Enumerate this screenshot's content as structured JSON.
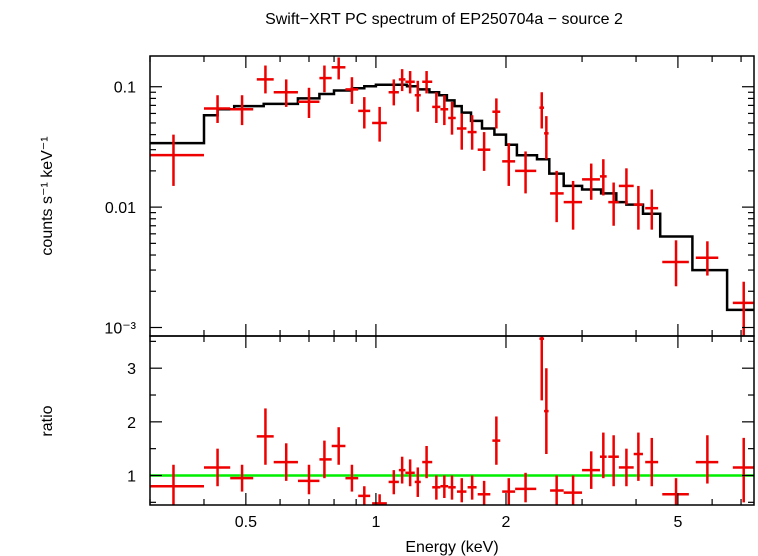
{
  "chart_data": [
    {
      "type": "scatter",
      "title": "Swift−XRT PC spectrum of EP250704a − source 2",
      "ylabel": "counts s⁻¹ keV⁻¹",
      "xlabel": "",
      "xscale": "log",
      "yscale": "log",
      "xlim": [
        0.3,
        7.5
      ],
      "ylim": [
        0.00085,
        0.18
      ],
      "ytick_labels": [
        {
          "value": 0.1,
          "label": "0.1"
        },
        {
          "value": 0.01,
          "label": "0.01"
        },
        {
          "value": 0.001,
          "label": "10⁻³"
        }
      ],
      "data_color": "#ee0000",
      "model_color": "#000000",
      "points": [
        {
          "x": 0.34,
          "xlo": 0.3,
          "xhi": 0.4,
          "y": 0.027,
          "ylo": 0.015,
          "yhi": 0.04
        },
        {
          "x": 0.43,
          "xlo": 0.4,
          "xhi": 0.46,
          "y": 0.066,
          "ylo": 0.05,
          "yhi": 0.085
        },
        {
          "x": 0.49,
          "xlo": 0.46,
          "xhi": 0.52,
          "y": 0.065,
          "ylo": 0.048,
          "yhi": 0.085
        },
        {
          "x": 0.555,
          "xlo": 0.53,
          "xhi": 0.58,
          "y": 0.115,
          "ylo": 0.088,
          "yhi": 0.15
        },
        {
          "x": 0.62,
          "xlo": 0.58,
          "xhi": 0.66,
          "y": 0.09,
          "ylo": 0.068,
          "yhi": 0.115
        },
        {
          "x": 0.7,
          "xlo": 0.66,
          "xhi": 0.74,
          "y": 0.075,
          "ylo": 0.055,
          "yhi": 0.098
        },
        {
          "x": 0.76,
          "xlo": 0.74,
          "xhi": 0.79,
          "y": 0.118,
          "ylo": 0.09,
          "yhi": 0.15
        },
        {
          "x": 0.82,
          "xlo": 0.79,
          "xhi": 0.85,
          "y": 0.145,
          "ylo": 0.115,
          "yhi": 0.175
        },
        {
          "x": 0.88,
          "xlo": 0.85,
          "xhi": 0.91,
          "y": 0.095,
          "ylo": 0.072,
          "yhi": 0.12
        },
        {
          "x": 0.94,
          "xlo": 0.91,
          "xhi": 0.97,
          "y": 0.063,
          "ylo": 0.045,
          "yhi": 0.082
        },
        {
          "x": 1.02,
          "xlo": 0.98,
          "xhi": 1.06,
          "y": 0.05,
          "ylo": 0.035,
          "yhi": 0.068
        },
        {
          "x": 1.1,
          "xlo": 1.07,
          "xhi": 1.13,
          "y": 0.09,
          "ylo": 0.07,
          "yhi": 0.115
        },
        {
          "x": 1.15,
          "xlo": 1.13,
          "xhi": 1.17,
          "y": 0.115,
          "ylo": 0.092,
          "yhi": 0.14
        },
        {
          "x": 1.2,
          "xlo": 1.17,
          "xhi": 1.23,
          "y": 0.11,
          "ylo": 0.088,
          "yhi": 0.135
        },
        {
          "x": 1.25,
          "xlo": 1.23,
          "xhi": 1.27,
          "y": 0.085,
          "ylo": 0.062,
          "yhi": 0.112
        },
        {
          "x": 1.31,
          "xlo": 1.28,
          "xhi": 1.35,
          "y": 0.11,
          "ylo": 0.088,
          "yhi": 0.135
        },
        {
          "x": 1.38,
          "xlo": 1.35,
          "xhi": 1.41,
          "y": 0.068,
          "ylo": 0.05,
          "yhi": 0.09
        },
        {
          "x": 1.44,
          "xlo": 1.41,
          "xhi": 1.47,
          "y": 0.065,
          "ylo": 0.048,
          "yhi": 0.085
        },
        {
          "x": 1.5,
          "xlo": 1.47,
          "xhi": 1.53,
          "y": 0.055,
          "ylo": 0.04,
          "yhi": 0.075
        },
        {
          "x": 1.58,
          "xlo": 1.54,
          "xhi": 1.62,
          "y": 0.045,
          "ylo": 0.03,
          "yhi": 0.06
        },
        {
          "x": 1.67,
          "xlo": 1.63,
          "xhi": 1.71,
          "y": 0.042,
          "ylo": 0.03,
          "yhi": 0.058
        },
        {
          "x": 1.78,
          "xlo": 1.72,
          "xhi": 1.84,
          "y": 0.03,
          "ylo": 0.02,
          "yhi": 0.042
        },
        {
          "x": 1.9,
          "xlo": 1.86,
          "xhi": 1.94,
          "y": 0.062,
          "ylo": 0.045,
          "yhi": 0.08
        },
        {
          "x": 2.03,
          "xlo": 1.96,
          "xhi": 2.1,
          "y": 0.024,
          "ylo": 0.015,
          "yhi": 0.034
        },
        {
          "x": 2.22,
          "xlo": 2.1,
          "xhi": 2.35,
          "y": 0.02,
          "ylo": 0.013,
          "yhi": 0.029
        },
        {
          "x": 2.42,
          "xlo": 2.39,
          "xhi": 2.45,
          "y": 0.067,
          "ylo": 0.045,
          "yhi": 0.09
        },
        {
          "x": 2.48,
          "xlo": 2.45,
          "xhi": 2.51,
          "y": 0.041,
          "ylo": 0.025,
          "yhi": 0.057
        },
        {
          "x": 2.62,
          "xlo": 2.53,
          "xhi": 2.72,
          "y": 0.013,
          "ylo": 0.0075,
          "yhi": 0.02
        },
        {
          "x": 2.86,
          "xlo": 2.72,
          "xhi": 3.0,
          "y": 0.011,
          "ylo": 0.0065,
          "yhi": 0.0165
        },
        {
          "x": 3.15,
          "xlo": 3.0,
          "xhi": 3.3,
          "y": 0.017,
          "ylo": 0.0115,
          "yhi": 0.023
        },
        {
          "x": 3.36,
          "xlo": 3.3,
          "xhi": 3.42,
          "y": 0.018,
          "ylo": 0.0125,
          "yhi": 0.025
        },
        {
          "x": 3.55,
          "xlo": 3.45,
          "xhi": 3.65,
          "y": 0.011,
          "ylo": 0.007,
          "yhi": 0.016
        },
        {
          "x": 3.8,
          "xlo": 3.65,
          "xhi": 3.95,
          "y": 0.015,
          "ylo": 0.0105,
          "yhi": 0.021
        },
        {
          "x": 4.05,
          "xlo": 3.95,
          "xhi": 4.15,
          "y": 0.0105,
          "ylo": 0.0065,
          "yhi": 0.015
        },
        {
          "x": 4.35,
          "xlo": 4.2,
          "xhi": 4.5,
          "y": 0.0098,
          "ylo": 0.0065,
          "yhi": 0.014
        },
        {
          "x": 4.95,
          "xlo": 4.6,
          "xhi": 5.3,
          "y": 0.0035,
          "ylo": 0.0022,
          "yhi": 0.0053
        },
        {
          "x": 5.85,
          "xlo": 5.5,
          "xhi": 6.2,
          "y": 0.0038,
          "ylo": 0.0027,
          "yhi": 0.0052
        },
        {
          "x": 7.1,
          "xlo": 6.7,
          "xhi": 7.5,
          "y": 0.0016,
          "ylo": 0.00085,
          "yhi": 0.0024
        }
      ],
      "model": [
        {
          "x0": 0.3,
          "x1": 0.4,
          "y": 0.034
        },
        {
          "x0": 0.4,
          "x1": 0.43,
          "y": 0.058
        },
        {
          "x0": 0.43,
          "x1": 0.47,
          "y": 0.065
        },
        {
          "x0": 0.47,
          "x1": 0.55,
          "y": 0.069
        },
        {
          "x0": 0.55,
          "x1": 0.66,
          "y": 0.072
        },
        {
          "x0": 0.66,
          "x1": 0.74,
          "y": 0.08
        },
        {
          "x0": 0.74,
          "x1": 0.8,
          "y": 0.087
        },
        {
          "x0": 0.8,
          "x1": 0.88,
          "y": 0.093
        },
        {
          "x0": 0.88,
          "x1": 0.94,
          "y": 0.097
        },
        {
          "x0": 0.94,
          "x1": 1.0,
          "y": 0.101
        },
        {
          "x0": 1.0,
          "x1": 1.18,
          "y": 0.104
        },
        {
          "x0": 1.18,
          "x1": 1.25,
          "y": 0.101
        },
        {
          "x0": 1.25,
          "x1": 1.33,
          "y": 0.095
        },
        {
          "x0": 1.33,
          "x1": 1.4,
          "y": 0.09
        },
        {
          "x0": 1.4,
          "x1": 1.46,
          "y": 0.085
        },
        {
          "x0": 1.46,
          "x1": 1.52,
          "y": 0.077
        },
        {
          "x0": 1.52,
          "x1": 1.58,
          "y": 0.069
        },
        {
          "x0": 1.58,
          "x1": 1.66,
          "y": 0.061
        },
        {
          "x0": 1.66,
          "x1": 1.76,
          "y": 0.052
        },
        {
          "x0": 1.76,
          "x1": 1.88,
          "y": 0.045
        },
        {
          "x0": 1.88,
          "x1": 2.0,
          "y": 0.04
        },
        {
          "x0": 2.0,
          "x1": 2.12,
          "y": 0.033
        },
        {
          "x0": 2.12,
          "x1": 2.36,
          "y": 0.027
        },
        {
          "x0": 2.36,
          "x1": 2.52,
          "y": 0.025
        },
        {
          "x0": 2.52,
          "x1": 2.72,
          "y": 0.019
        },
        {
          "x0": 2.72,
          "x1": 3.0,
          "y": 0.015
        },
        {
          "x0": 3.0,
          "x1": 3.32,
          "y": 0.014
        },
        {
          "x0": 3.32,
          "x1": 3.6,
          "y": 0.013
        },
        {
          "x0": 3.6,
          "x1": 3.8,
          "y": 0.011
        },
        {
          "x0": 3.8,
          "x1": 4.15,
          "y": 0.0105
        },
        {
          "x0": 4.15,
          "x1": 4.55,
          "y": 0.0088
        },
        {
          "x0": 4.55,
          "x1": 5.4,
          "y": 0.0057
        },
        {
          "x0": 5.4,
          "x1": 6.5,
          "y": 0.003
        },
        {
          "x0": 6.5,
          "x1": 7.5,
          "y": 0.0014
        }
      ]
    },
    {
      "type": "scatter",
      "title": "",
      "xlabel": "Energy (keV)",
      "ylabel": "ratio",
      "xscale": "log",
      "yscale": "linear",
      "xlim": [
        0.3,
        7.5
      ],
      "ylim": [
        0.45,
        3.6
      ],
      "xtick_labels": [
        {
          "value": 0.5,
          "label": "0.5"
        },
        {
          "value": 1,
          "label": "1"
        },
        {
          "value": 2,
          "label": "2"
        },
        {
          "value": 5,
          "label": "5"
        }
      ],
      "ytick_labels": [
        {
          "value": 1,
          "label": "1"
        },
        {
          "value": 2,
          "label": "2"
        },
        {
          "value": 3,
          "label": "3"
        }
      ],
      "reference_line": 1,
      "reference_color": "#00ee00",
      "data_color": "#ee0000",
      "points": [
        {
          "x": 0.34,
          "xlo": 0.3,
          "xhi": 0.4,
          "y": 0.8,
          "ylo": 0.45,
          "yhi": 1.2
        },
        {
          "x": 0.43,
          "xlo": 0.4,
          "xhi": 0.46,
          "y": 1.15,
          "ylo": 0.8,
          "yhi": 1.5
        },
        {
          "x": 0.49,
          "xlo": 0.46,
          "xhi": 0.52,
          "y": 0.95,
          "ylo": 0.7,
          "yhi": 1.2
        },
        {
          "x": 0.555,
          "xlo": 0.53,
          "xhi": 0.58,
          "y": 1.73,
          "ylo": 1.2,
          "yhi": 2.25
        },
        {
          "x": 0.62,
          "xlo": 0.58,
          "xhi": 0.66,
          "y": 1.25,
          "ylo": 0.9,
          "yhi": 1.6
        },
        {
          "x": 0.7,
          "xlo": 0.66,
          "xhi": 0.74,
          "y": 0.9,
          "ylo": 0.65,
          "yhi": 1.2
        },
        {
          "x": 0.76,
          "xlo": 0.74,
          "xhi": 0.79,
          "y": 1.3,
          "ylo": 0.95,
          "yhi": 1.65
        },
        {
          "x": 0.82,
          "xlo": 0.79,
          "xhi": 0.85,
          "y": 1.55,
          "ylo": 1.2,
          "yhi": 1.9
        },
        {
          "x": 0.88,
          "xlo": 0.85,
          "xhi": 0.91,
          "y": 0.95,
          "ylo": 0.7,
          "yhi": 1.2
        },
        {
          "x": 0.94,
          "xlo": 0.91,
          "xhi": 0.97,
          "y": 0.62,
          "ylo": 0.45,
          "yhi": 0.8
        },
        {
          "x": 1.02,
          "xlo": 0.98,
          "xhi": 1.06,
          "y": 0.48,
          "ylo": 0.45,
          "yhi": 0.65
        },
        {
          "x": 1.1,
          "xlo": 1.07,
          "xhi": 1.13,
          "y": 0.88,
          "ylo": 0.65,
          "yhi": 1.1
        },
        {
          "x": 1.15,
          "xlo": 1.13,
          "xhi": 1.17,
          "y": 1.1,
          "ylo": 0.85,
          "yhi": 1.35
        },
        {
          "x": 1.2,
          "xlo": 1.17,
          "xhi": 1.23,
          "y": 1.05,
          "ylo": 0.8,
          "yhi": 1.3
        },
        {
          "x": 1.25,
          "xlo": 1.23,
          "xhi": 1.27,
          "y": 0.88,
          "ylo": 0.6,
          "yhi": 1.15
        },
        {
          "x": 1.31,
          "xlo": 1.28,
          "xhi": 1.35,
          "y": 1.25,
          "ylo": 0.95,
          "yhi": 1.55
        },
        {
          "x": 1.38,
          "xlo": 1.35,
          "xhi": 1.41,
          "y": 0.78,
          "ylo": 0.55,
          "yhi": 1.0
        },
        {
          "x": 1.44,
          "xlo": 1.41,
          "xhi": 1.47,
          "y": 0.8,
          "ylo": 0.58,
          "yhi": 1.0
        },
        {
          "x": 1.5,
          "xlo": 1.47,
          "xhi": 1.53,
          "y": 0.78,
          "ylo": 0.55,
          "yhi": 1.0
        },
        {
          "x": 1.58,
          "xlo": 1.54,
          "xhi": 1.62,
          "y": 0.7,
          "ylo": 0.5,
          "yhi": 0.95
        },
        {
          "x": 1.67,
          "xlo": 1.63,
          "xhi": 1.71,
          "y": 0.78,
          "ylo": 0.55,
          "yhi": 1.0
        },
        {
          "x": 1.78,
          "xlo": 1.72,
          "xhi": 1.84,
          "y": 0.65,
          "ylo": 0.45,
          "yhi": 0.9
        },
        {
          "x": 1.9,
          "xlo": 1.86,
          "xhi": 1.94,
          "y": 1.65,
          "ylo": 1.2,
          "yhi": 2.1
        },
        {
          "x": 2.03,
          "xlo": 1.96,
          "xhi": 2.1,
          "y": 0.7,
          "ylo": 0.45,
          "yhi": 0.95
        },
        {
          "x": 2.22,
          "xlo": 2.1,
          "xhi": 2.35,
          "y": 0.75,
          "ylo": 0.5,
          "yhi": 1.05
        },
        {
          "x": 2.42,
          "xlo": 2.39,
          "xhi": 2.45,
          "y": 3.55,
          "ylo": 2.4,
          "yhi": 3.6
        },
        {
          "x": 2.48,
          "xlo": 2.45,
          "xhi": 2.51,
          "y": 2.2,
          "ylo": 1.4,
          "yhi": 3.0
        },
        {
          "x": 2.62,
          "xlo": 2.53,
          "xhi": 2.72,
          "y": 0.72,
          "ylo": 0.45,
          "yhi": 1.0
        },
        {
          "x": 2.86,
          "xlo": 2.72,
          "xhi": 3.0,
          "y": 0.68,
          "ylo": 0.45,
          "yhi": 1.0
        },
        {
          "x": 3.15,
          "xlo": 3.0,
          "xhi": 3.3,
          "y": 1.1,
          "ylo": 0.75,
          "yhi": 1.45
        },
        {
          "x": 3.36,
          "xlo": 3.3,
          "xhi": 3.42,
          "y": 1.35,
          "ylo": 0.95,
          "yhi": 1.8
        },
        {
          "x": 3.55,
          "xlo": 3.45,
          "xhi": 3.65,
          "y": 1.35,
          "ylo": 0.8,
          "yhi": 1.75
        },
        {
          "x": 3.8,
          "xlo": 3.65,
          "xhi": 3.95,
          "y": 1.15,
          "ylo": 0.8,
          "yhi": 1.5
        },
        {
          "x": 4.05,
          "xlo": 3.95,
          "xhi": 4.15,
          "y": 1.4,
          "ylo": 0.9,
          "yhi": 1.8
        },
        {
          "x": 4.35,
          "xlo": 4.2,
          "xhi": 4.5,
          "y": 1.25,
          "ylo": 0.8,
          "yhi": 1.7
        },
        {
          "x": 4.95,
          "xlo": 4.6,
          "xhi": 5.3,
          "y": 0.65,
          "ylo": 0.45,
          "yhi": 0.95
        },
        {
          "x": 5.85,
          "xlo": 5.5,
          "xhi": 6.2,
          "y": 1.25,
          "ylo": 0.85,
          "yhi": 1.75
        },
        {
          "x": 7.1,
          "xlo": 6.7,
          "xhi": 7.5,
          "y": 1.15,
          "ylo": 0.5,
          "yhi": 1.7
        }
      ]
    }
  ]
}
